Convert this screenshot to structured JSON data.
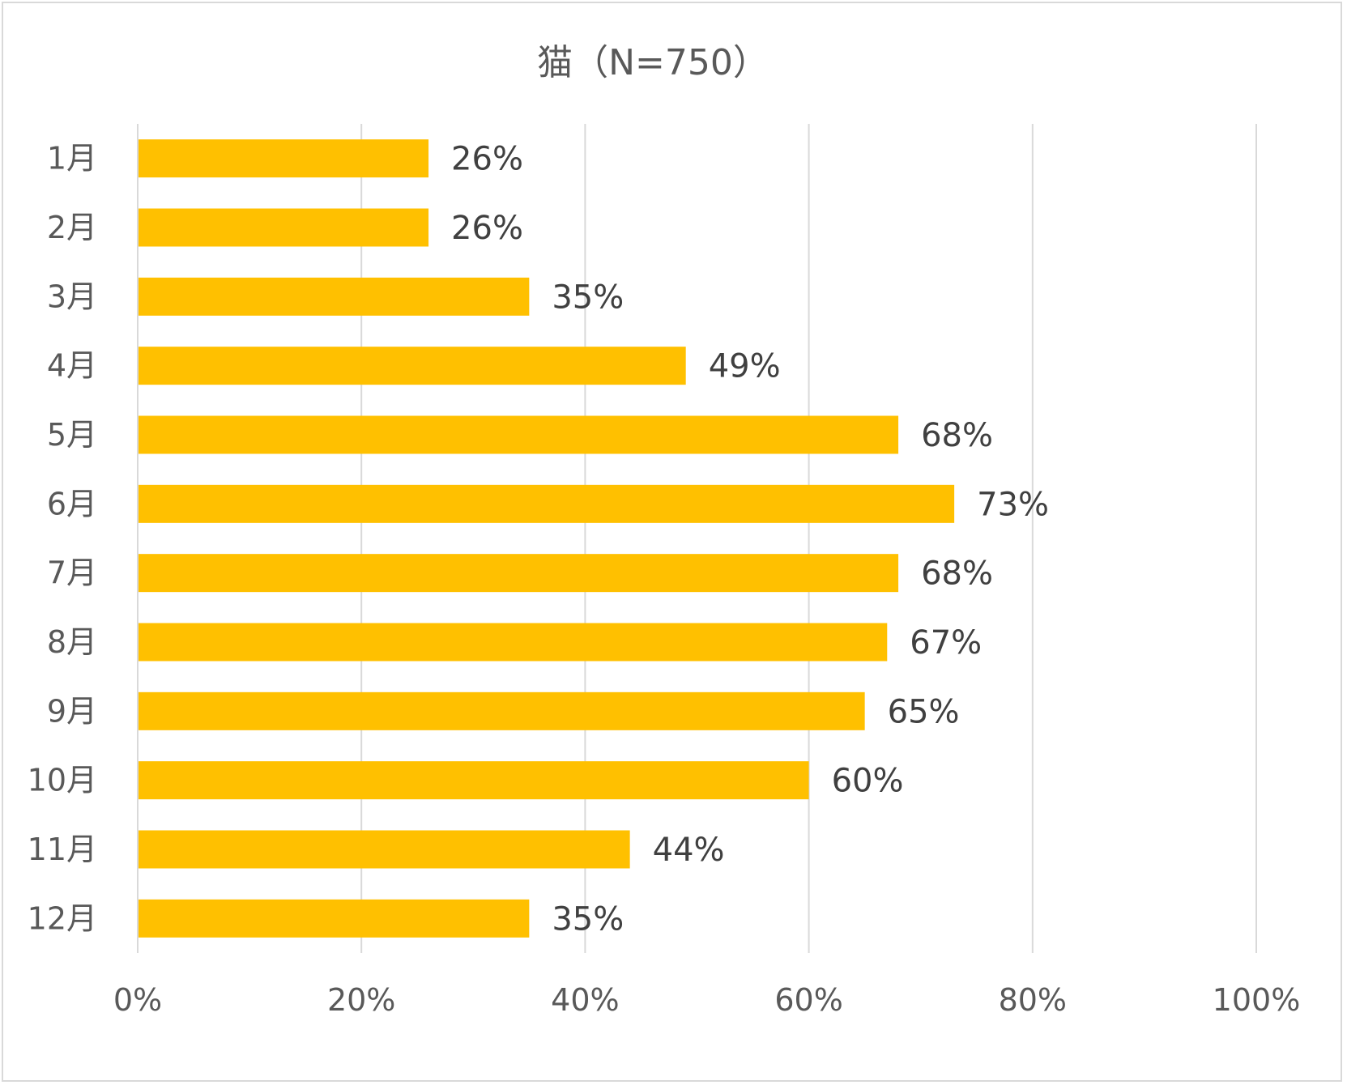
{
  "chart_data": {
    "type": "bar",
    "orientation": "horizontal",
    "title": "猫（N=750）",
    "categories": [
      "1月",
      "2月",
      "3月",
      "4月",
      "5月",
      "6月",
      "7月",
      "8月",
      "9月",
      "10月",
      "11月",
      "12月"
    ],
    "values": [
      26,
      26,
      35,
      49,
      68,
      73,
      68,
      67,
      65,
      60,
      44,
      35
    ],
    "value_labels": [
      "26%",
      "26%",
      "35%",
      "49%",
      "68%",
      "73%",
      "68%",
      "67%",
      "65%",
      "60%",
      "44%",
      "35%"
    ],
    "xlim": [
      0,
      100
    ],
    "x_ticks": [
      0,
      20,
      40,
      60,
      80,
      100
    ],
    "x_tick_labels": [
      "0%",
      "20%",
      "40%",
      "60%",
      "80%",
      "100%"
    ],
    "grid": "vertical",
    "legend": "none",
    "bar_color": "#FFC000",
    "gridline_color": "#D9D9D9",
    "text_color": "#595959"
  }
}
